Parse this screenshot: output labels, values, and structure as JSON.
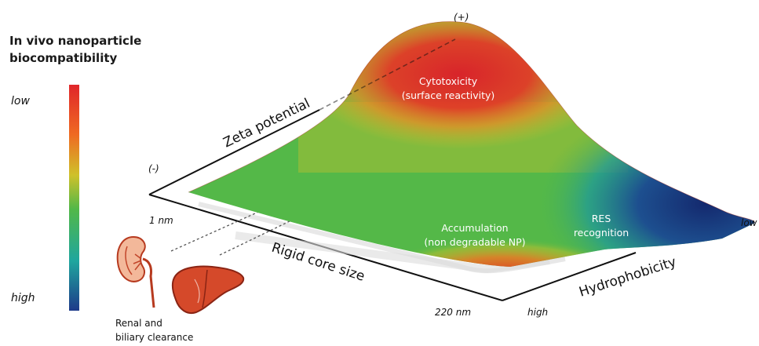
{
  "legend": {
    "title_line1": "In vivo nanoparticle",
    "title_line2": "biocompatibility",
    "top_label": "low",
    "bottom_label": "high",
    "gradient_colors": [
      "#e0262a",
      "#ef6a22",
      "#d9c02a",
      "#52b848",
      "#20a8a0",
      "#1e3a8a"
    ]
  },
  "axes": {
    "zeta": {
      "title": "Zeta potential",
      "min_label": "(-)",
      "max_label": "(+)"
    },
    "size": {
      "title": "Rigid core size",
      "min_label": "1 nm",
      "max_label": "220 nm"
    },
    "hydro": {
      "title": "Hydrophobicity",
      "min_label": "low",
      "max_label": "high"
    }
  },
  "regions": {
    "cytotoxicity_line1": "Cytotoxicity",
    "cytotoxicity_line2": "(surface reactivity)",
    "accumulation_line1": "Accumulation",
    "accumulation_line2": "(non degradable NP)",
    "res_line1": "RES",
    "res_line2": "recognition"
  },
  "clearance": {
    "line1": "Renal and",
    "line2": "biliary clearance",
    "kidney_icon": "kidney-icon",
    "liver_icon": "liver-icon"
  }
}
